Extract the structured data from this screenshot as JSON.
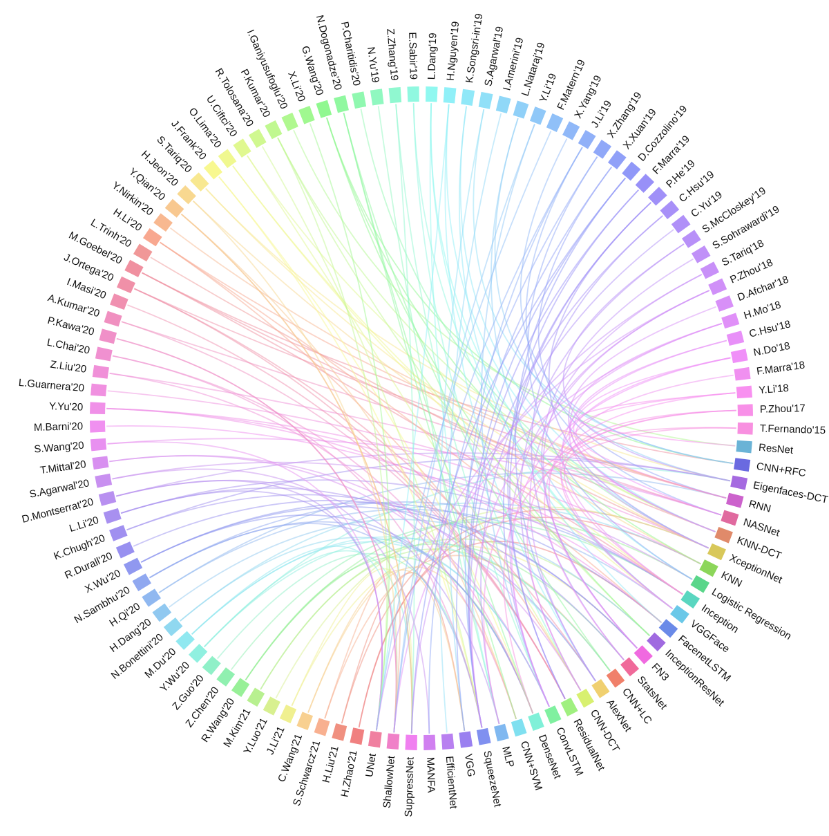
{
  "nodes": [
    {
      "label": "ResNet",
      "color": "#6ab3d6"
    },
    {
      "label": "CNN+RFC",
      "color": "#6a6ae0"
    },
    {
      "label": "Eigenfaces-DCT",
      "color": "#a56ae0"
    },
    {
      "label": "RNN",
      "color": "#cc62cc"
    },
    {
      "label": "NASNet",
      "color": "#e06a9f"
    },
    {
      "label": "KNN-DCT",
      "color": "#e08a6a"
    },
    {
      "label": "XceptionNet",
      "color": "#d8c85a"
    },
    {
      "label": "KNN",
      "color": "#8cd65a"
    },
    {
      "label": "Logistic Regression",
      "color": "#5ad68a"
    },
    {
      "label": "Inception",
      "color": "#5ad6c0"
    },
    {
      "label": "VGGFace",
      "color": "#6ac8e8"
    },
    {
      "label": "FacenetLSTM",
      "color": "#6a8ae8"
    },
    {
      "label": "InceptionResNet",
      "color": "#a06ae0"
    },
    {
      "label": "FN3",
      "color": "#f06ae0"
    },
    {
      "label": "StatsNet",
      "color": "#f06a9a"
    },
    {
      "label": "CNN+LC",
      "color": "#f0806a"
    },
    {
      "label": "AlexNet",
      "color": "#f0d070"
    },
    {
      "label": "CNN-DCT",
      "color": "#d8f070"
    },
    {
      "label": "ResidualNet",
      "color": "#a0f080"
    },
    {
      "label": "ConvLSTM",
      "color": "#80f0a0"
    },
    {
      "label": "DenseNet",
      "color": "#80f0d8"
    },
    {
      "label": "CNN+SVM",
      "color": "#80e0f0"
    },
    {
      "label": "MLP",
      "color": "#80b8f0"
    },
    {
      "label": "SqueezeNet",
      "color": "#8090f0"
    },
    {
      "label": "VGG",
      "color": "#9a80f0"
    },
    {
      "label": "EfficientNet",
      "color": "#b880f0"
    },
    {
      "label": "MANFA",
      "color": "#d080f0"
    },
    {
      "label": "SuppressNet",
      "color": "#f080f0"
    },
    {
      "label": "ShallowNet",
      "color": "#f080c8"
    },
    {
      "label": "UNet",
      "color": "#f080a0"
    },
    {
      "label": "H.Zhao'21",
      "color": "#f08080"
    },
    {
      "label": "H.Liu'21",
      "color": "#f09080"
    },
    {
      "label": "S.Schwarcz'21",
      "color": "#f8b090"
    },
    {
      "label": "C.Wang'21",
      "color": "#f8d090"
    },
    {
      "label": "J.Li'21",
      "color": "#f0f090"
    },
    {
      "label": "Y.Luo'21",
      "color": "#d8f090"
    },
    {
      "label": "M.Kim'21",
      "color": "#b8f090"
    },
    {
      "label": "R.Wang'20",
      "color": "#98f098"
    },
    {
      "label": "Z.Chen'20",
      "color": "#90f0b0"
    },
    {
      "label": "Z.Guo'20",
      "color": "#90f0c8"
    },
    {
      "label": "Y.Wu'20",
      "color": "#90f0e0"
    },
    {
      "label": "M.Du'20",
      "color": "#90e8f0"
    },
    {
      "label": "N.Bonettini'20",
      "color": "#90d8f0"
    },
    {
      "label": "H.Dang'20",
      "color": "#90c8f0"
    },
    {
      "label": "H.Qi'20",
      "color": "#90b8f0"
    },
    {
      "label": "N.Sambhu'20",
      "color": "#90a8f0"
    },
    {
      "label": "X.Wu'20",
      "color": "#9098f0"
    },
    {
      "label": "R.Durall'20",
      "color": "#9890f0"
    },
    {
      "label": "K.Chugh'20",
      "color": "#a090f0"
    },
    {
      "label": "L.Li'20",
      "color": "#a890f0"
    },
    {
      "label": "D.Montserrat'20",
      "color": "#b890f0"
    },
    {
      "label": "S.Agarwal'20",
      "color": "#c890f0"
    },
    {
      "label": "T.Mittal'20",
      "color": "#d890f0"
    },
    {
      "label": "S.Wang'20",
      "color": "#e890f0"
    },
    {
      "label": "M.Barni'20",
      "color": "#f090f0"
    },
    {
      "label": "Y.Yu'20",
      "color": "#f090e8"
    },
    {
      "label": "L.Guarnera'20",
      "color": "#f090e0"
    },
    {
      "label": "Z.Liu'20",
      "color": "#f090d8"
    },
    {
      "label": "L.Chai'20",
      "color": "#f090d0"
    },
    {
      "label": "P.Kawa'20",
      "color": "#f090c8"
    },
    {
      "label": "A.Kumar'20",
      "color": "#f090c0"
    },
    {
      "label": "I.Masi'20",
      "color": "#f090b0"
    },
    {
      "label": "J.Ortega'20",
      "color": "#f090a8"
    },
    {
      "label": "M.Goebel'20",
      "color": "#f090a0"
    },
    {
      "label": "L.Trinh'20",
      "color": "#f09898"
    },
    {
      "label": "H.Li'20",
      "color": "#f8a890"
    },
    {
      "label": "Y.Nirkin'20",
      "color": "#f8b890"
    },
    {
      "label": "Y.Qian'20",
      "color": "#f8c890"
    },
    {
      "label": "H.Jeon'20",
      "color": "#f8d890"
    },
    {
      "label": "S.Tariq'20",
      "color": "#f8e890"
    },
    {
      "label": "J.Frank'20",
      "color": "#f8f890"
    },
    {
      "label": "O.Lima'20",
      "color": "#f0f890"
    },
    {
      "label": "U.Ciftci'20",
      "color": "#e0f890"
    },
    {
      "label": "R.Tolosana'20",
      "color": "#d0f890"
    },
    {
      "label": "P.Kumar'20",
      "color": "#c0f890"
    },
    {
      "label": "I.Ganiyusufoglu'20",
      "color": "#b0f890"
    },
    {
      "label": "X.Li'20",
      "color": "#a0f890"
    },
    {
      "label": "G.Wang'20",
      "color": "#90f890"
    },
    {
      "label": "N.Dogonadze'20",
      "color": "#90f8a0"
    },
    {
      "label": "P.Charitidis'20",
      "color": "#90f8b0"
    },
    {
      "label": "N.Yu'19",
      "color": "#90f8c0"
    },
    {
      "label": "Z.Zhang'19",
      "color": "#90f8d0"
    },
    {
      "label": "E.Sabir'19",
      "color": "#90f8e0"
    },
    {
      "label": "L.Dang'19",
      "color": "#90f8f0"
    },
    {
      "label": "H.Nguyen'19",
      "color": "#90f0f8"
    },
    {
      "label": "K.Songsri-in'19",
      "color": "#90e8f8"
    },
    {
      "label": "S.Agarwal'19",
      "color": "#90e0f8"
    },
    {
      "label": "I.Amerini'19",
      "color": "#90d8f8"
    },
    {
      "label": "L.Nataraj'19",
      "color": "#90d0f8"
    },
    {
      "label": "Y.Li'19",
      "color": "#90c8f8"
    },
    {
      "label": "F.Matern'19",
      "color": "#90c0f8"
    },
    {
      "label": "X.Yang'19",
      "color": "#90b8f8"
    },
    {
      "label": "J.Li'19",
      "color": "#90b0f8"
    },
    {
      "label": "X.Zhang'19",
      "color": "#90a8f8"
    },
    {
      "label": "X.Xuan'19",
      "color": "#90a0f8"
    },
    {
      "label": "D.Cozzolino'19",
      "color": "#9098f8"
    },
    {
      "label": "F.Marra'19",
      "color": "#9890f8"
    },
    {
      "label": "P.He'19",
      "color": "#a090f8"
    },
    {
      "label": "C.Hsu'19",
      "color": "#a890f8"
    },
    {
      "label": "C.Yu'19",
      "color": "#b090f8"
    },
    {
      "label": "S.McCloskey'19",
      "color": "#b890f8"
    },
    {
      "label": "S.Sohrawardi'19",
      "color": "#c090f8"
    },
    {
      "label": "S.Tariq'18",
      "color": "#c890f8"
    },
    {
      "label": "P.Zhou'18",
      "color": "#d090f8"
    },
    {
      "label": "D.Afchar'18",
      "color": "#d890f8"
    },
    {
      "label": "H.Mo'18",
      "color": "#e090f8"
    },
    {
      "label": "C.Hsu'18",
      "color": "#e890f8"
    },
    {
      "label": "N.Do'18",
      "color": "#f090f8"
    },
    {
      "label": "F.Marra'18",
      "color": "#f090f0"
    },
    {
      "label": "Y.Li'18",
      "color": "#f890f0"
    },
    {
      "label": "P.Zhou'17",
      "color": "#f890e8"
    },
    {
      "label": "T.Fernando'15",
      "color": "#f890e0"
    }
  ]
}
